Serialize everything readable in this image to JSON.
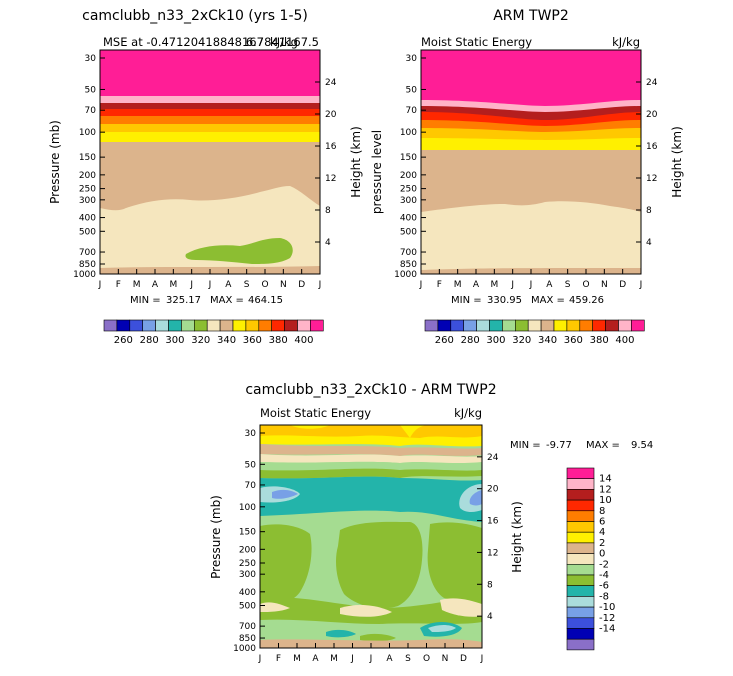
{
  "chart_data": [
    {
      "type": "contour",
      "title": "camclubb_n33_2xCk10 (yrs 1-5)",
      "subtitle_left": "MSE at -0.47120418848167",
      "subtitle_overprint": "kJ/kg",
      "subtitle_right": "6.7841167.5",
      "ylabel": "Pressure (mb)",
      "ylabel_right": "Height (km)",
      "x_ticks": [
        "J",
        "F",
        "M",
        "A",
        "M",
        "J",
        "J",
        "A",
        "S",
        "O",
        "N",
        "D",
        "J"
      ],
      "y_ticks": [
        "30",
        "50",
        "70",
        "100",
        "150",
        "200",
        "250",
        "300",
        "400",
        "500",
        "700",
        "850",
        "1000"
      ],
      "height_ticks": [
        "24",
        "20",
        "16",
        "12",
        "8",
        "4"
      ],
      "min_label": "MIN =",
      "min_value": "325.17",
      "max_label": "MAX =",
      "max_value": "464.15"
    },
    {
      "type": "contour",
      "title": "ARM TWP2",
      "subtitle_left": "Moist Static Energy",
      "subtitle_right": "kJ/kg",
      "ylabel": "pressure  level",
      "ylabel_right": "Height (km)",
      "x_ticks": [
        "J",
        "F",
        "M",
        "A",
        "M",
        "J",
        "J",
        "A",
        "S",
        "O",
        "N",
        "D",
        "J"
      ],
      "y_ticks": [
        "30",
        "50",
        "70",
        "100",
        "150",
        "200",
        "250",
        "300",
        "400",
        "500",
        "700",
        "850",
        "1000"
      ],
      "height_ticks": [
        "24",
        "20",
        "16",
        "12",
        "8",
        "4"
      ],
      "min_label": "MIN =",
      "min_value": "330.95",
      "max_label": "MAX =",
      "max_value": "459.26"
    },
    {
      "type": "contour",
      "title": "camclubb_n33_2xCk10 - ARM TWP2",
      "subtitle_left": "Moist Static Energy",
      "subtitle_right": "kJ/kg",
      "ylabel": "Pressure (mb)",
      "ylabel_right": "Height (km)",
      "x_ticks": [
        "J",
        "F",
        "M",
        "A",
        "M",
        "J",
        "J",
        "A",
        "S",
        "O",
        "N",
        "D",
        "J"
      ],
      "y_ticks": [
        "30",
        "50",
        "70",
        "100",
        "150",
        "200",
        "250",
        "300",
        "400",
        "500",
        "700",
        "850",
        "1000"
      ],
      "height_ticks": [
        "24",
        "20",
        "16",
        "12",
        "8",
        "4"
      ],
      "min_label": "MIN =",
      "min_value": "-9.77",
      "max_label": "MAX =",
      "max_value": "9.54"
    }
  ],
  "colorbar_top": {
    "colors": [
      "#8a6fc8",
      "#0000b4",
      "#3c50dc",
      "#78a0e6",
      "#aadcdc",
      "#23b4aa",
      "#a5dc91",
      "#8cbe32",
      "#f5e6be",
      "#dcb48c",
      "#fff000",
      "#ffc800",
      "#ff7d00",
      "#ff2800",
      "#b41e1e",
      "#ffb4c8",
      "#ff1e96"
    ],
    "labels": [
      "260",
      "280",
      "300",
      "320",
      "340",
      "360",
      "380",
      "400"
    ]
  },
  "colorbar_diff": {
    "colors": [
      "#ff1e96",
      "#ffb4c8",
      "#b41e1e",
      "#ff2800",
      "#ff7d00",
      "#ffc800",
      "#fff000",
      "#dcb48c",
      "#f5e6be",
      "#a5dc91",
      "#8cbe32",
      "#23b4aa",
      "#aadcdc",
      "#78a0e6",
      "#3c50dc",
      "#0000b4",
      "#8a6fc8"
    ],
    "labels": [
      "14",
      "12",
      "10",
      "8",
      "6",
      "4",
      "2",
      "0",
      "-2",
      "-4",
      "-6",
      "-8",
      "-10",
      "-12",
      "-14"
    ]
  }
}
